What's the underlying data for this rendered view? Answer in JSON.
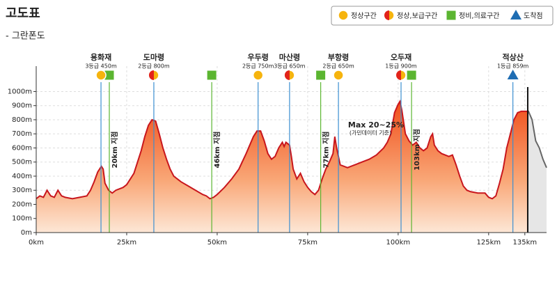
{
  "chart_data": {
    "type": "elevation",
    "title": "고도표",
    "subtitle": "- 그란폰도",
    "legend": [
      {
        "label": "정상구간",
        "icon": "normal"
      },
      {
        "label": "정상,보급구간",
        "icon": "supply"
      },
      {
        "label": "정비,의료구간",
        "icon": "service"
      },
      {
        "label": "도착점",
        "icon": "finish"
      }
    ],
    "x": [
      0,
      1,
      2,
      3,
      4,
      5,
      6,
      7,
      8,
      10,
      12,
      14,
      15,
      16,
      17,
      18,
      18.5,
      19,
      20,
      21,
      22,
      24,
      25,
      26,
      27,
      28,
      29,
      30,
      31,
      32,
      33,
      34,
      35,
      36,
      37,
      38,
      40,
      42,
      44,
      46,
      47,
      48,
      49,
      50,
      52,
      54,
      56,
      58,
      60,
      61,
      62,
      63,
      64,
      65,
      66,
      67,
      68,
      68.5,
      69,
      70,
      70.5,
      71,
      72,
      73,
      74,
      75,
      76,
      77,
      78,
      79,
      80,
      81,
      82,
      82.5,
      83,
      84,
      86,
      88,
      90,
      92,
      94,
      96,
      97,
      98,
      99,
      100,
      100.5,
      101,
      102,
      103,
      104,
      105,
      106,
      107,
      108,
      109,
      109.5,
      110,
      111,
      112,
      114,
      115,
      116,
      117,
      118,
      119,
      120,
      122,
      124,
      125,
      126,
      127,
      128,
      129,
      130,
      131,
      132,
      133,
      134,
      135,
      136,
      137,
      138,
      139,
      140,
      141
    ],
    "series": [
      {
        "color": "#c8161d",
        "values": [
          240,
          260,
          250,
          300,
          260,
          250,
          300,
          260,
          250,
          240,
          250,
          260,
          300,
          360,
          430,
          470,
          450,
          350,
          300,
          280,
          300,
          320,
          340,
          380,
          420,
          500,
          580,
          680,
          760,
          800,
          790,
          700,
          600,
          520,
          450,
          400,
          360,
          330,
          300,
          270,
          260,
          240,
          250,
          270,
          320,
          380,
          450,
          560,
          680,
          720,
          720,
          650,
          560,
          520,
          540,
          600,
          640,
          610,
          640,
          620,
          540,
          450,
          380,
          420,
          360,
          320,
          290,
          270,
          300,
          380,
          450,
          500,
          560,
          680,
          600,
          480,
          460,
          480,
          500,
          520,
          550,
          600,
          640,
          700,
          850,
          910,
          930,
          870,
          700,
          650,
          620,
          640,
          600,
          580,
          600,
          680,
          700,
          620,
          580,
          560,
          540,
          550,
          480,
          400,
          330,
          300,
          290,
          280,
          280,
          250,
          240,
          260,
          350,
          450,
          600,
          700,
          800,
          850,
          860,
          860,
          860,
          800,
          650,
          600,
          520,
          460
        ]
      }
    ],
    "finish_x": 135.8,
    "summits": [
      {
        "name": "용화재",
        "grade": "3등급 450m",
        "x": 17.9,
        "icon": "normal"
      },
      {
        "name": "도마령",
        "grade": "2등급 800m",
        "x": 32.5,
        "icon": "supply"
      },
      {
        "name": "우두령",
        "grade": "2등급 750m",
        "x": 61.3,
        "icon": "normal"
      },
      {
        "name": "마산령",
        "grade": "3등급 650m",
        "x": 70,
        "icon": "supply"
      },
      {
        "name": "부항령",
        "grade": "2등급 650m",
        "x": 83.5,
        "icon": "normal"
      },
      {
        "name": "오두재",
        "grade": "1등급 900m",
        "x": 100.8,
        "icon": "supply"
      },
      {
        "name": "적상산",
        "grade": "1등급 859m",
        "x": 131.7,
        "icon": "finish"
      }
    ],
    "service_points": [
      {
        "x": 20.2,
        "label": "20km 지점"
      },
      {
        "x": 48.5,
        "label": "46km 지점"
      },
      {
        "x": 78.6,
        "label": "77km 지점"
      },
      {
        "x": 103.7,
        "label": "103km 지점"
      }
    ],
    "annotation": "Max 20~25%",
    "annotation_note": "(가민데이터 기준)",
    "xlim": [
      0,
      141
    ],
    "ylim": [
      0,
      1180
    ],
    "xticks": [
      {
        "value": 0,
        "label": "0km"
      },
      {
        "value": 25,
        "label": "25km"
      },
      {
        "value": 50,
        "label": "50km"
      },
      {
        "value": 75,
        "label": "75km"
      },
      {
        "value": 100,
        "label": "100km"
      },
      {
        "value": 125,
        "label": "125km"
      },
      {
        "value": 135,
        "label": "135km"
      }
    ],
    "yticks": [
      {
        "value": 0,
        "label": "0m"
      },
      {
        "value": 100,
        "label": "100m"
      },
      {
        "value": 200,
        "label": "200m"
      },
      {
        "value": 300,
        "label": "300m"
      },
      {
        "value": 400,
        "label": "400m"
      },
      {
        "value": 500,
        "label": "500m"
      },
      {
        "value": 600,
        "label": "600m"
      },
      {
        "value": 700,
        "label": "700m"
      },
      {
        "value": 800,
        "label": "800m"
      },
      {
        "value": 900,
        "label": "900m"
      },
      {
        "value": 1000,
        "label": "1000m"
      }
    ],
    "grid": true
  }
}
